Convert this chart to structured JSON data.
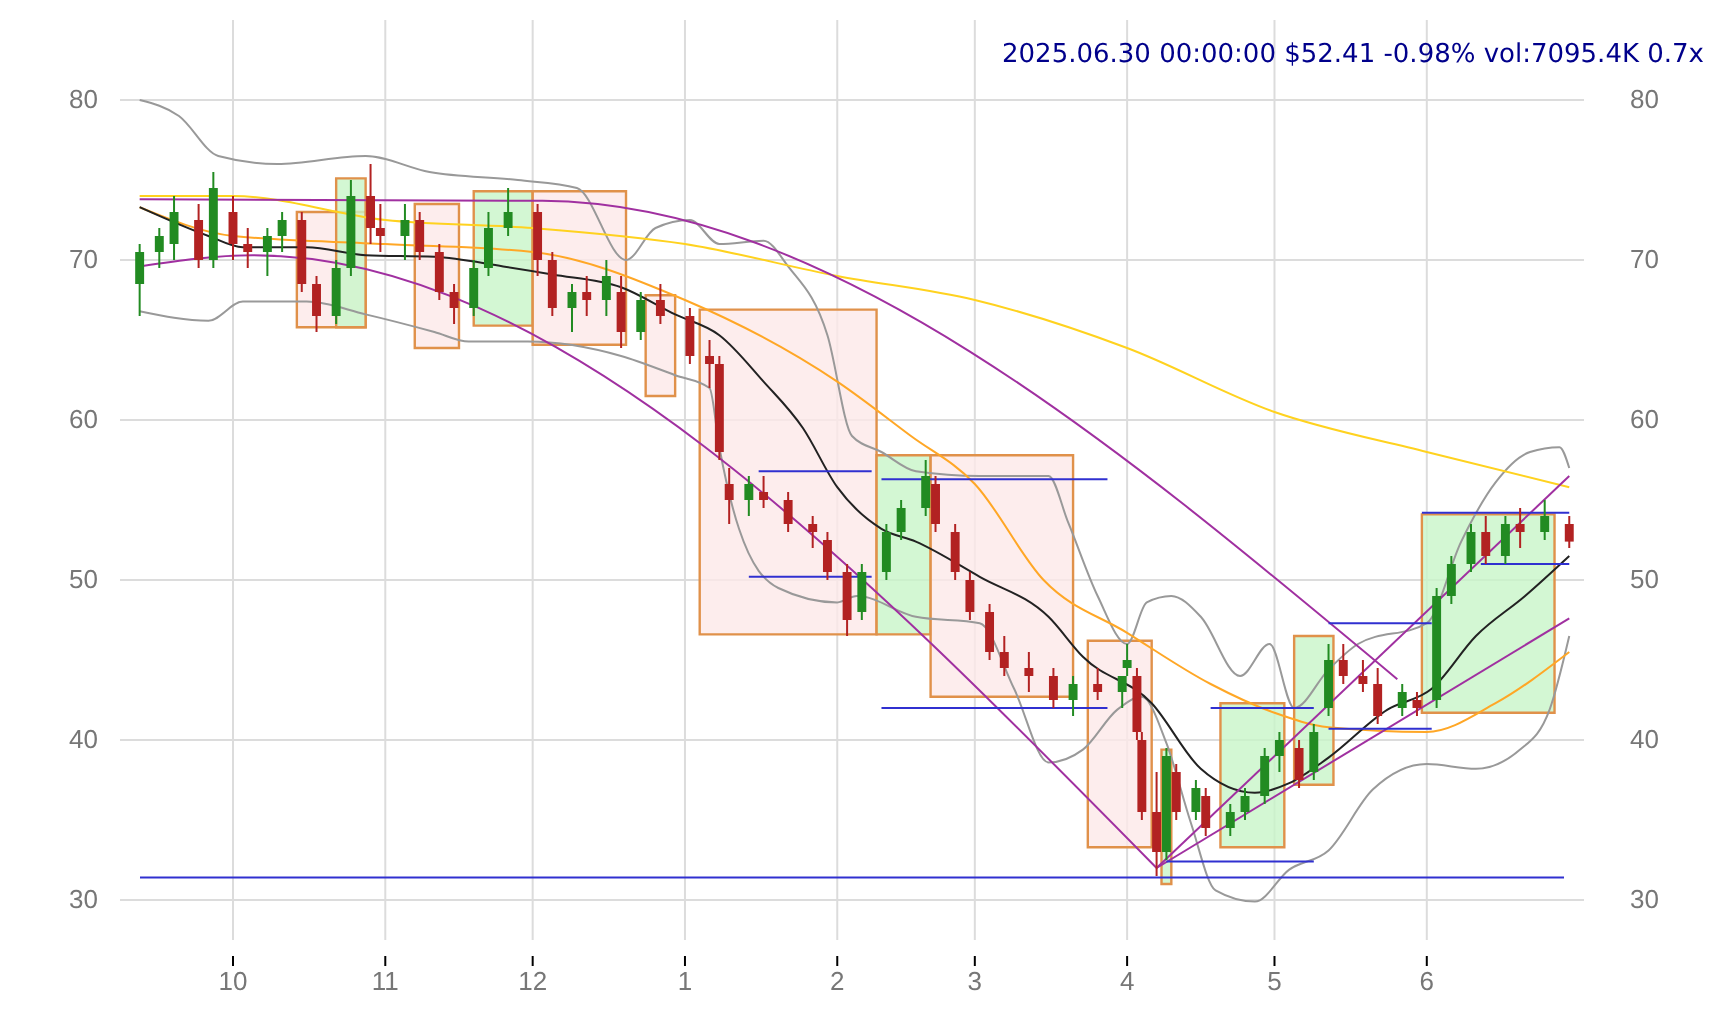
{
  "chart_data": {
    "type": "candlestick",
    "title": "2025.06.30 00:00:00 $52.41 -0.98% vol:7095.4K 0.7x",
    "xlim": [
      "2024-09-08",
      "2025-07-03"
    ],
    "xticks": [
      {
        "value": "2024-10-01",
        "label": "10"
      },
      {
        "value": "2024-11-01",
        "label": "11"
      },
      {
        "value": "2024-12-01",
        "label": "12"
      },
      {
        "value": "2025-01-01",
        "label": "1"
      },
      {
        "value": "2025-02-01",
        "label": "2"
      },
      {
        "value": "2025-03-01",
        "label": "3"
      },
      {
        "value": "2025-04-01",
        "label": "4"
      },
      {
        "value": "2025-05-01",
        "label": "5"
      },
      {
        "value": "2025-06-01",
        "label": "6"
      }
    ],
    "ylim": [
      27.5,
      85
    ],
    "yticks": [
      30,
      40,
      50,
      60,
      70,
      80
    ],
    "y2lim": [
      27.5,
      85
    ],
    "y2ticks": [
      30,
      40,
      50,
      60,
      70,
      80
    ],
    "grid": true,
    "ref_lines": [
      {
        "axis": "y",
        "value": 31.4,
        "color": "#3030d0"
      }
    ],
    "series": [
      {
        "type": "line",
        "color": "#fde8e8",
        "x": [
          "2024-10-14",
          "2024-10-28"
        ],
        "values": [
          null,
          null
        ],
        "upper": [
          73,
          73
        ],
        "lower": [
          65.8,
          65.8
        ]
      },
      {
        "type": "line",
        "color": "#c8f5c8",
        "x": [
          "2024-10-22",
          "2024-10-28"
        ],
        "values": [
          null,
          null
        ],
        "upper": [
          75.1,
          75.1
        ],
        "lower": [
          65.8,
          65.8
        ]
      },
      {
        "type": "line",
        "color": "#fde8e8",
        "x": [
          "2024-11-07",
          "2024-11-16"
        ],
        "values": [
          null,
          null
        ],
        "upper": [
          73.5,
          73.5
        ],
        "lower": [
          64.5,
          64.5
        ]
      },
      {
        "type": "line",
        "color": "#c8f5c8",
        "x": [
          "2024-11-19",
          "2024-12-01"
        ],
        "values": [
          null,
          null
        ],
        "upper": [
          74.3,
          74.3
        ],
        "lower": [
          65.9,
          65.9
        ]
      },
      {
        "type": "line",
        "color": "#fde8e8",
        "x": [
          "2024-12-01",
          "2024-12-20"
        ],
        "values": [
          null,
          null
        ],
        "upper": [
          74.3,
          74.3
        ],
        "lower": [
          64.7,
          64.7
        ]
      },
      {
        "type": "line",
        "color": "#fde8e8",
        "x": [
          "2024-12-24",
          "2024-12-30"
        ],
        "values": [
          null,
          null
        ],
        "upper": [
          67.8,
          67.8
        ],
        "lower": [
          61.5,
          61.5
        ]
      },
      {
        "type": "line",
        "color": "#fde8e8",
        "x": [
          "2025-01-04",
          "2025-02-09"
        ],
        "values": [
          null,
          null
        ],
        "upper": [
          66.9,
          66.9
        ],
        "lower": [
          46.6,
          46.6
        ]
      },
      {
        "type": "line",
        "color": "#c8f5c8",
        "x": [
          "2025-02-09",
          "2025-02-20"
        ],
        "values": [
          null,
          null
        ],
        "upper": [
          57.8,
          57.8
        ],
        "lower": [
          46.6,
          46.6
        ]
      },
      {
        "type": "line",
        "color": "#fde8e8",
        "x": [
          "2025-02-20",
          "2025-03-21"
        ],
        "values": [
          null,
          null
        ],
        "upper": [
          57.8,
          57.8
        ],
        "lower": [
          42.7,
          42.7
        ]
      },
      {
        "type": "line",
        "color": "#fde8e8",
        "x": [
          "2025-03-24",
          "2025-04-06"
        ],
        "values": [
          null,
          null
        ],
        "upper": [
          46.2,
          46.2
        ],
        "lower": [
          33.3,
          33.3
        ]
      },
      {
        "type": "line",
        "color": "#c8f5c8",
        "x": [
          "2025-04-08",
          "2025-04-10"
        ],
        "values": [
          null,
          null
        ],
        "upper": [
          39.4,
          39.4
        ],
        "lower": [
          31,
          31
        ]
      },
      {
        "type": "line",
        "color": "#c8f5c8",
        "x": [
          "2025-04-20",
          "2025-05-03"
        ],
        "values": [
          null,
          null
        ],
        "upper": [
          42.3,
          42.3
        ],
        "lower": [
          33.3,
          33.3
        ]
      },
      {
        "type": "line",
        "color": "#c8f5c8",
        "x": [
          "2025-05-05",
          "2025-05-13"
        ],
        "values": [
          null,
          null
        ],
        "upper": [
          46.5,
          46.5
        ],
        "lower": [
          37.2,
          37.2
        ]
      },
      {
        "type": "line",
        "color": "#c8f5c8",
        "x": [
          "2025-05-31",
          "2025-06-27"
        ],
        "values": [
          null,
          null
        ],
        "upper": [
          54.1,
          54.1
        ],
        "lower": [
          41.7,
          41.7
        ]
      },
      {
        "type": "line",
        "color": "#999999",
        "x": [
          "2024-09-12",
          "2024-09-20",
          "2024-09-28",
          "2024-10-10",
          "2024-10-28",
          "2024-11-10",
          "2024-11-28",
          "2024-12-10",
          "2024-12-20",
          "2024-12-26",
          "2025-01-02",
          "2025-01-08",
          "2025-01-17",
          "2025-01-22",
          "2025-01-30",
          "2025-02-04",
          "2025-02-10",
          "2025-02-17",
          "2025-03-02",
          "2025-03-16",
          "2025-03-20",
          "2025-03-26",
          "2025-04-01",
          "2025-04-05",
          "2025-04-10",
          "2025-04-16",
          "2025-04-24",
          "2025-04-30",
          "2025-05-05",
          "2025-05-12",
          "2025-05-18",
          "2025-06-01",
          "2025-06-08",
          "2025-06-15",
          "2025-06-22",
          "2025-06-28",
          "2025-06-30"
        ],
        "values": [
          80,
          79,
          76.5,
          76,
          76.5,
          75.5,
          75,
          74.5,
          70,
          72,
          72.5,
          71,
          71.2,
          69.6,
          65.3,
          59,
          58,
          56.8,
          56.5,
          56.5,
          53.6,
          49,
          46,
          48.6,
          49,
          47.7,
          44,
          46,
          42,
          44.4,
          46,
          47.3,
          52.4,
          56.1,
          58,
          58.3,
          57
        ]
      },
      {
        "type": "line",
        "color": "#999999",
        "x": [
          "2024-09-12",
          "2024-09-26",
          "2024-10-03",
          "2024-10-16",
          "2024-10-28",
          "2024-11-11",
          "2024-11-18",
          "2024-11-25",
          "2024-11-30",
          "2024-12-19",
          "2024-12-30",
          "2025-01-06",
          "2025-01-08",
          "2025-01-12",
          "2025-01-20",
          "2025-02-01",
          "2025-02-05",
          "2025-02-17",
          "2025-03-02",
          "2025-03-09",
          "2025-03-16",
          "2025-03-23",
          "2025-03-30",
          "2025-04-04",
          "2025-04-09",
          "2025-04-14",
          "2025-04-19",
          "2025-04-27",
          "2025-05-04",
          "2025-05-12",
          "2025-05-21",
          "2025-06-01",
          "2025-06-11",
          "2025-06-20",
          "2025-06-26",
          "2025-06-30"
        ],
        "values": [
          66.8,
          66.2,
          67.4,
          67.4,
          66.6,
          65.5,
          64.9,
          64.9,
          64.9,
          64,
          62.8,
          62,
          58.3,
          53.2,
          49.5,
          48.6,
          49,
          47.7,
          47.3,
          43.2,
          38.6,
          39.4,
          41.9,
          42.7,
          39.8,
          34.8,
          30.6,
          29.9,
          31.9,
          33.1,
          36.9,
          38.5,
          38.2,
          39.4,
          41.9,
          46.5
        ]
      },
      {
        "type": "line",
        "color": "#ffd21f",
        "x": [
          "2024-09-12",
          "2024-10-01",
          "2024-11-01",
          "2024-12-01",
          "2025-01-01",
          "2025-02-01",
          "2025-03-01",
          "2025-04-01",
          "2025-05-01",
          "2025-06-01",
          "2025-06-30"
        ],
        "values": [
          74,
          74,
          72.5,
          72,
          71,
          69,
          67.5,
          64.5,
          60.5,
          58,
          55.8
        ]
      },
      {
        "type": "line",
        "color": "#ffa726",
        "x": [
          "2024-09-12",
          "2024-10-01",
          "2024-11-01",
          "2024-12-01",
          "2025-01-01",
          "2025-02-01",
          "2025-02-16",
          "2025-03-01",
          "2025-03-15",
          "2025-04-01",
          "2025-04-18",
          "2025-05-01",
          "2025-05-12",
          "2025-06-01",
          "2025-06-15",
          "2025-06-30"
        ],
        "values": [
          73.3,
          71.5,
          71,
          70.5,
          67.5,
          62.4,
          59,
          56,
          50,
          46.7,
          43.5,
          41.7,
          40.8,
          40.5,
          42.3,
          45.5
        ]
      },
      {
        "type": "line",
        "color": "#222222",
        "x": [
          "2024-09-12",
          "2024-09-26",
          "2024-10-03",
          "2024-10-16",
          "2024-10-28",
          "2024-11-11",
          "2024-11-25",
          "2024-12-05",
          "2024-12-19",
          "2024-12-30",
          "2025-01-08",
          "2025-01-17",
          "2025-01-25",
          "2025-02-01",
          "2025-02-10",
          "2025-02-17",
          "2025-03-02",
          "2025-03-16",
          "2025-03-23",
          "2025-04-06",
          "2025-04-16",
          "2025-04-27",
          "2025-05-04",
          "2025-05-12",
          "2025-05-24",
          "2025-06-02",
          "2025-06-11",
          "2025-06-21",
          "2025-06-30"
        ],
        "values": [
          73.3,
          71.5,
          70.8,
          70.8,
          70.3,
          70.2,
          69.6,
          69.1,
          68.3,
          66.6,
          65.3,
          62.4,
          59.5,
          55.8,
          53.2,
          52.4,
          50.2,
          47.7,
          45.2,
          42.3,
          38.2,
          36.7,
          37.3,
          38.9,
          41.9,
          43.2,
          46.5,
          49,
          51.5
        ]
      },
      {
        "type": "line",
        "color": "#a030a0",
        "x": [
          "2024-09-12",
          "2024-12-03",
          "2025-05-26"
        ],
        "values": [
          73.8,
          73.7,
          43.8
        ]
      },
      {
        "type": "line",
        "color": "#a030a0",
        "x": [
          "2024-09-12",
          "2024-10-05",
          "2025-04-07"
        ],
        "values": [
          69.6,
          70.3,
          32
        ]
      },
      {
        "type": "line",
        "color": "#a030a0",
        "x": [
          "2025-04-07",
          "2025-06-30"
        ],
        "values": [
          32,
          56.5
        ]
      },
      {
        "type": "line",
        "color": "#a030a0",
        "x": [
          "2025-04-07",
          "2025-06-30"
        ],
        "values": [
          32,
          47.6
        ]
      },
      {
        "type": "line",
        "color": "#3030d0",
        "x": [
          "2025-01-16",
          "2025-02-08"
        ],
        "values": [
          56.8,
          56.8
        ]
      },
      {
        "type": "line",
        "color": "#3030d0",
        "x": [
          "2025-01-14",
          "2025-02-08"
        ],
        "values": [
          50.2,
          50.2
        ]
      },
      {
        "type": "line",
        "color": "#3030d0",
        "x": [
          "2025-02-10",
          "2025-03-28"
        ],
        "values": [
          56.3,
          56.3
        ]
      },
      {
        "type": "line",
        "color": "#3030d0",
        "x": [
          "2025-02-10",
          "2025-03-28"
        ],
        "values": [
          42,
          42
        ]
      },
      {
        "type": "line",
        "color": "#3030d0",
        "x": [
          "2025-04-18",
          "2025-05-09"
        ],
        "values": [
          42,
          42
        ]
      },
      {
        "type": "line",
        "color": "#3030d0",
        "x": [
          "2025-04-09",
          "2025-05-09"
        ],
        "values": [
          32.4,
          32.4
        ]
      },
      {
        "type": "line",
        "color": "#3030d0",
        "x": [
          "2025-05-12",
          "2025-06-02"
        ],
        "values": [
          47.3,
          47.3
        ]
      },
      {
        "type": "line",
        "color": "#3030d0",
        "x": [
          "2025-05-12",
          "2025-06-02"
        ],
        "values": [
          40.7,
          40.7
        ]
      },
      {
        "type": "line",
        "color": "#3030d0",
        "x": [
          "2025-05-31",
          "2025-06-30"
        ],
        "values": [
          54.2,
          54.2
        ]
      },
      {
        "type": "line",
        "color": "#3030d0",
        "x": [
          "2025-06-12",
          "2025-06-30"
        ],
        "values": [
          51,
          51
        ]
      },
      {
        "x": [
          "2024-09-12",
          "2024-09-16",
          "2024-09-19",
          "2024-09-24",
          "2024-09-27",
          "2024-10-01",
          "2024-10-04",
          "2024-10-08",
          "2024-10-11",
          "2024-10-15",
          "2024-10-18",
          "2024-10-22",
          "2024-10-25",
          "2024-10-29",
          "2024-10-31",
          "2024-11-05",
          "2024-11-08",
          "2024-11-12",
          "2024-11-15",
          "2024-11-19",
          "2024-11-22",
          "2024-11-26",
          "2024-12-02",
          "2024-12-05",
          "2024-12-09",
          "2024-12-12",
          "2024-12-16",
          "2024-12-19",
          "2024-12-23",
          "2024-12-27",
          "2025-01-02",
          "2025-01-06",
          "2025-01-08",
          "2025-01-10",
          "2025-01-14",
          "2025-01-17",
          "2025-01-22",
          "2025-01-27",
          "2025-01-30",
          "2025-02-03",
          "2025-02-06",
          "2025-02-11",
          "2025-02-14",
          "2025-02-19",
          "2025-02-21",
          "2025-02-25",
          "2025-02-28",
          "2025-03-04",
          "2025-03-07",
          "2025-03-12",
          "2025-03-17",
          "2025-03-21",
          "2025-03-26",
          "2025-03-31",
          "2025-04-01",
          "2025-04-03",
          "2025-04-04",
          "2025-04-07",
          "2025-04-09",
          "2025-04-11",
          "2025-04-15",
          "2025-04-17",
          "2025-04-22",
          "2025-04-25",
          "2025-04-29",
          "2025-05-02",
          "2025-05-06",
          "2025-05-09",
          "2025-05-12",
          "2025-05-15",
          "2025-05-19",
          "2025-05-22",
          "2025-05-27",
          "2025-05-30",
          "2025-06-03",
          "2025-06-06",
          "2025-06-10",
          "2025-06-13",
          "2025-06-17",
          "2025-06-20",
          "2025-06-25",
          "2025-06-30"
        ],
        "ohlc": [
          [
            68.5,
            71,
            66.5,
            70.5
          ],
          [
            70.5,
            72,
            69.5,
            71.5
          ],
          [
            71,
            74,
            70,
            73
          ],
          [
            72.5,
            73.5,
            69.5,
            70
          ],
          [
            70,
            75.5,
            69.5,
            74.5
          ],
          [
            73,
            74,
            70,
            71
          ],
          [
            71,
            72,
            69.5,
            70.5
          ],
          [
            70.5,
            72,
            69,
            71.5
          ],
          [
            71.5,
            73,
            70.5,
            72.5
          ],
          [
            72.5,
            73,
            68,
            68.5
          ],
          [
            68.5,
            69,
            65.5,
            66.5
          ],
          [
            66.5,
            70,
            66,
            69.5
          ],
          [
            69.5,
            75,
            69,
            74
          ],
          [
            74,
            76,
            71,
            72
          ],
          [
            72,
            73.5,
            70.5,
            71.5
          ],
          [
            71.5,
            73.5,
            70,
            72.5
          ],
          [
            72.5,
            73,
            70,
            70.5
          ],
          [
            70.5,
            71,
            67.5,
            68
          ],
          [
            68,
            68.5,
            66,
            67
          ],
          [
            67,
            70,
            66.5,
            69.5
          ],
          [
            69.5,
            73,
            69,
            72
          ],
          [
            72,
            74.5,
            71.5,
            73
          ],
          [
            73,
            73.5,
            69,
            70
          ],
          [
            70,
            70.5,
            66.5,
            67
          ],
          [
            67,
            68.5,
            65.5,
            68
          ],
          [
            68,
            69,
            66.5,
            67.5
          ],
          [
            67.5,
            70,
            66.5,
            69
          ],
          [
            68,
            69,
            64.5,
            65.5
          ],
          [
            65.5,
            68,
            65,
            67.5
          ],
          [
            67.5,
            68.5,
            66,
            66.5
          ],
          [
            66.5,
            67,
            63.5,
            64
          ],
          [
            64,
            65,
            62,
            63.5
          ],
          [
            63.5,
            64,
            57.5,
            58
          ],
          [
            56,
            57,
            53.5,
            55
          ],
          [
            55,
            56.5,
            54,
            56
          ],
          [
            55.5,
            56.5,
            54.5,
            55
          ],
          [
            55,
            55.5,
            53,
            53.5
          ],
          [
            53.5,
            54,
            52,
            53
          ],
          [
            52.5,
            53,
            50,
            50.5
          ],
          [
            50.5,
            51,
            46.5,
            47.5
          ],
          [
            48,
            51,
            47.5,
            50.5
          ],
          [
            50.5,
            53.5,
            50,
            53
          ],
          [
            53,
            55,
            52.5,
            54.5
          ],
          [
            54.5,
            57.5,
            54,
            56.5
          ],
          [
            56,
            56.5,
            53,
            53.5
          ],
          [
            53,
            53.5,
            50,
            50.5
          ],
          [
            50,
            50.5,
            47.5,
            48
          ],
          [
            48,
            48.5,
            45,
            45.5
          ],
          [
            45.5,
            46.5,
            44,
            44.5
          ],
          [
            44.5,
            45.5,
            43,
            44
          ],
          [
            44,
            44.5,
            42,
            42.5
          ],
          [
            42.5,
            44,
            41.5,
            43.5
          ],
          [
            43.5,
            44.5,
            42.5,
            43
          ],
          [
            43,
            44,
            42,
            44
          ],
          [
            44.5,
            46,
            44,
            45
          ],
          [
            44,
            44.5,
            40,
            40.5
          ],
          [
            40,
            40.5,
            35,
            35.5
          ],
          [
            35.5,
            38,
            31.5,
            33
          ],
          [
            33,
            39.5,
            32.5,
            39
          ],
          [
            38,
            38.5,
            35,
            35.5
          ],
          [
            35.5,
            37.5,
            35,
            37
          ],
          [
            36.5,
            37,
            34,
            34.5
          ],
          [
            34.5,
            36,
            34,
            35.5
          ],
          [
            35.5,
            37,
            35,
            36.5
          ],
          [
            36.5,
            39.5,
            36,
            39
          ],
          [
            39,
            40.5,
            38,
            40
          ],
          [
            39.5,
            40,
            37,
            37.5
          ],
          [
            38,
            41,
            37.5,
            40.5
          ],
          [
            42,
            46,
            41.5,
            45
          ],
          [
            45,
            46,
            43.5,
            44
          ],
          [
            44,
            45,
            43,
            43.5
          ],
          [
            43.5,
            44.5,
            41,
            41.5
          ],
          [
            42,
            43.5,
            41.5,
            43
          ],
          [
            42.5,
            43,
            41.5,
            42
          ],
          [
            42.5,
            49.5,
            42,
            49
          ],
          [
            49,
            51.5,
            48.5,
            51
          ],
          [
            51,
            53.5,
            50.5,
            53
          ],
          [
            53,
            54,
            51,
            51.5
          ],
          [
            51.5,
            54,
            51,
            53.5
          ],
          [
            53.5,
            54.5,
            52,
            53
          ],
          [
            53,
            55,
            52.5,
            54
          ],
          [
            53.5,
            54,
            52,
            52.4
          ]
        ],
        "colors": [
          "#228b22",
          "#228b22",
          "#228b22",
          "#b22222",
          "#228b22",
          "#b22222",
          "#b22222",
          "#228b22",
          "#228b22",
          "#b22222",
          "#b22222",
          "#228b22",
          "#228b22",
          "#b22222",
          "#b22222",
          "#228b22",
          "#b22222",
          "#b22222",
          "#b22222",
          "#228b22",
          "#228b22",
          "#228b22",
          "#b22222",
          "#b22222",
          "#228b22",
          "#b22222",
          "#228b22",
          "#b22222",
          "#228b22",
          "#b22222",
          "#b22222",
          "#b22222",
          "#b22222",
          "#b22222",
          "#228b22",
          "#b22222",
          "#b22222",
          "#b22222",
          "#b22222",
          "#b22222",
          "#228b22",
          "#228b22",
          "#228b22",
          "#228b22",
          "#b22222",
          "#b22222",
          "#b22222",
          "#b22222",
          "#b22222",
          "#b22222",
          "#b22222",
          "#228b22",
          "#b22222",
          "#228b22",
          "#228b22",
          "#b22222",
          "#b22222",
          "#b22222",
          "#228b22",
          "#b22222",
          "#228b22",
          "#b22222",
          "#228b22",
          "#228b22",
          "#228b22",
          "#228b22",
          "#b22222",
          "#228b22",
          "#228b22",
          "#b22222",
          "#b22222",
          "#b22222",
          "#228b22",
          "#b22222",
          "#228b22",
          "#228b22",
          "#228b22",
          "#b22222",
          "#228b22",
          "#b22222",
          "#228b22",
          "#b22222"
        ]
      }
    ]
  }
}
